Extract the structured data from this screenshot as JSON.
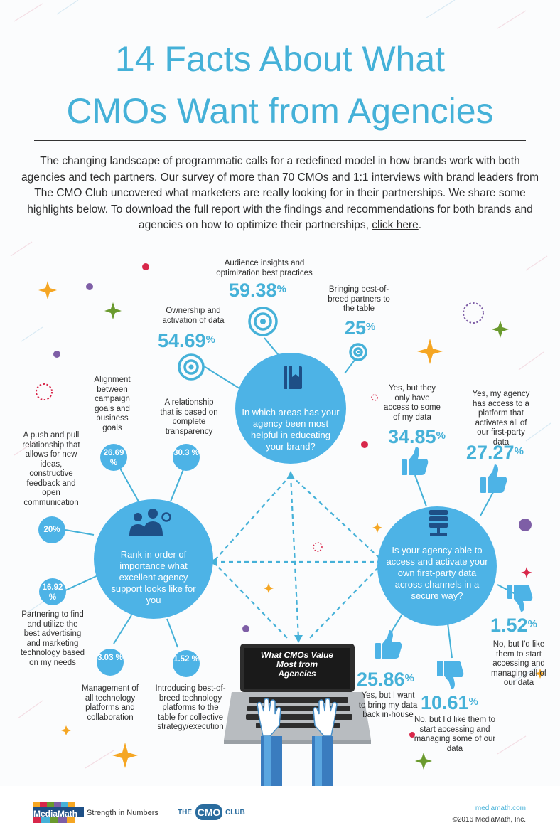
{
  "header": {
    "title_line1": "14 Facts About What",
    "title_line2": "CMOs Want from Agencies",
    "intro_text": "The changing landscape of programmatic calls for a redefined model in how brands work with both agencies and tech partners. Our survey of more than 70 CMOs and 1:1 interviews with brand leaders from The CMO Club uncovered what marketers are really looking for in their partnerships. We share some highlights below. To download the full report with the findings and recommendations for both brands and agencies on how to optimize their partnerships,",
    "intro_link": "click here",
    "intro_end": "."
  },
  "education": {
    "question": "In which areas has your agency been most helpful in educating your brand?",
    "items": [
      {
        "label": "Audience insights and optimization best practices",
        "value": "59.38",
        "unit": "%"
      },
      {
        "label": "Bringing best-of-breed partners to the table",
        "value": "25",
        "unit": "%"
      },
      {
        "label": "Ownership and activation of data",
        "value": "54.69",
        "unit": "%"
      }
    ]
  },
  "rank": {
    "question": "Rank in order of importance what excellent agency support looks like for you",
    "items": [
      {
        "label": "Alignment between campaign goals and business goals",
        "value": "26.69 %"
      },
      {
        "label": "A relationship that is based on complete transparency",
        "value": "30.3 %"
      },
      {
        "label": "A push and pull relationship that allows for new ideas, constructive feedback and open communication",
        "value": "20%"
      },
      {
        "label": "Partnering to find and utilize the best advertising and marketing technology based on my needs",
        "value": "16.92 %"
      },
      {
        "label": "Management of all technology platforms and collaboration",
        "value": "3.03 %"
      },
      {
        "label": "Introducing best-of-breed technology platforms to the table for collective strategy/execution",
        "value": "1.52 %"
      }
    ]
  },
  "data_access": {
    "question": "Is your agency able to access and activate your own first-party data across channels in a secure way?",
    "items": [
      {
        "label": "Yes, but they only have access to some of my data",
        "value": "34.85",
        "unit": "%"
      },
      {
        "label": "Yes, my agency has access to a platform that activates all of our first-party data",
        "value": "27.27",
        "unit": "%"
      },
      {
        "label": "No, but I'd like them to start accessing and managing all of our data",
        "value": "1.52",
        "unit": "%"
      },
      {
        "label": "Yes, but I want to bring my data back in-house",
        "value": "25.86",
        "unit": "%"
      },
      {
        "label": "No, but I'd like them to start accessing and managing some of our data",
        "value": "10.61",
        "unit": "%"
      }
    ]
  },
  "laptop": {
    "screen_text": "What CMOs Value Most from Agencies"
  },
  "footer": {
    "brand_name": "MediaMath",
    "tagline": "Strength in Numbers",
    "club_the": "THE",
    "club_cmo": "CMO",
    "club_name": "CLUB",
    "website": "mediamath.com",
    "copyright": "©2016 MediaMath, Inc."
  },
  "colors": {
    "accent": "#45b1d8",
    "hub": "#4db3e6",
    "dark": "#2a2a2a",
    "orange": "#f5a623",
    "green": "#6a9a2e",
    "purple": "#7e5ea6",
    "red": "#d8274a"
  }
}
